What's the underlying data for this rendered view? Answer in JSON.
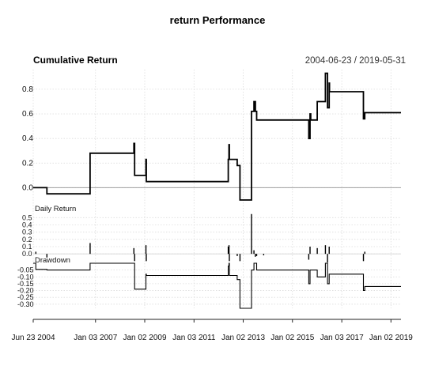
{
  "chart_data": {
    "type": "line",
    "title": "return Performance",
    "x_ticks": [
      "Jun 23 2004",
      "Jan 03 2007",
      "Jan 02 2009",
      "Jan 03 2011",
      "Jan 02 2013",
      "Jan 02 2015",
      "Jan 03 2017",
      "Jan 02 2019"
    ],
    "x_range": [
      "2004-06-23",
      "2019-05-31"
    ],
    "grid": true,
    "panels": [
      {
        "name": "cumulative",
        "title": "Cumulative Return",
        "period": "2004-06-23 / 2019-05-31",
        "yticks": [
          "0.8",
          "0.6",
          "0.4",
          "0.2",
          "0.0"
        ],
        "ylim": [
          -0.1,
          0.96
        ],
        "reference_line": 0,
        "series": [
          {
            "x": [
              "2004-06-23",
              "2005-01-12",
              "2005-01-12",
              "2006-10-15",
              "2006-10-15",
              "2008-07-25",
              "2008-07-25",
              "2008-08-05",
              "2008-08-05",
              "2009-01-20",
              "2009-01-20",
              "2009-01-25",
              "2009-01-25",
              "2012-05-25",
              "2012-05-25",
              "2012-06-05",
              "2012-06-05",
              "2012-06-10",
              "2012-06-10",
              "2012-10-05",
              "2012-10-05",
              "2012-11-15",
              "2012-11-15",
              "2013-05-05",
              "2013-05-05",
              "2013-06-10",
              "2013-06-10",
              "2013-07-01",
              "2013-07-01",
              "2013-07-20",
              "2013-07-20",
              "2015-09-01",
              "2015-09-01",
              "2015-09-20",
              "2015-09-20",
              "2015-10-01",
              "2015-10-01",
              "2016-01-05",
              "2016-01-05",
              "2016-05-05",
              "2016-05-05",
              "2016-06-05",
              "2016-06-05",
              "2016-06-30",
              "2016-06-30",
              "2016-07-05",
              "2016-07-05",
              "2017-11-20",
              "2017-11-20",
              "2017-12-10",
              "2017-12-10",
              "2019-05-31"
            ],
            "y": [
              0.0,
              0.0,
              -0.05,
              -0.05,
              0.28,
              0.28,
              0.36,
              0.36,
              0.1,
              0.1,
              0.23,
              0.23,
              0.05,
              0.05,
              0.23,
              0.23,
              0.35,
              0.35,
              0.23,
              0.23,
              0.18,
              0.18,
              -0.1,
              -0.1,
              0.62,
              0.62,
              0.7,
              0.7,
              0.62,
              0.62,
              0.55,
              0.55,
              0.4,
              0.4,
              0.6,
              0.6,
              0.55,
              0.55,
              0.7,
              0.7,
              0.93,
              0.93,
              0.65,
              0.65,
              0.85,
              0.85,
              0.78,
              0.78,
              0.56,
              0.56,
              0.61,
              0.61
            ]
          }
        ]
      },
      {
        "name": "daily",
        "title": "Daily Return",
        "yticks": [
          "0.5",
          "0.4",
          "0.3",
          "0.2",
          "0.1",
          "0.0"
        ],
        "ylim": [
          -0.02,
          0.58
        ],
        "bars": [
          {
            "x": "2004-08-01",
            "v": 0.03
          },
          {
            "x": "2005-01-12",
            "v": -0.05
          },
          {
            "x": "2006-10-15",
            "v": 0.15
          },
          {
            "x": "2008-07-25",
            "v": 0.08
          },
          {
            "x": "2008-08-05",
            "v": -0.1
          },
          {
            "x": "2009-01-20",
            "v": 0.12
          },
          {
            "x": "2009-01-25",
            "v": -0.1
          },
          {
            "x": "2012-05-25",
            "v": 0.1
          },
          {
            "x": "2012-06-05",
            "v": 0.12
          },
          {
            "x": "2012-06-10",
            "v": -0.1
          },
          {
            "x": "2012-10-05",
            "v": -0.03
          },
          {
            "x": "2012-11-15",
            "v": -0.1
          },
          {
            "x": "2013-05-05",
            "v": 0.55
          },
          {
            "x": "2013-06-10",
            "v": 0.05
          },
          {
            "x": "2013-07-01",
            "v": -0.04
          },
          {
            "x": "2013-07-20",
            "v": -0.03
          },
          {
            "x": "2013-11-01",
            "v": -0.02
          },
          {
            "x": "2015-09-01",
            "v": -0.08
          },
          {
            "x": "2015-09-20",
            "v": 0.1
          },
          {
            "x": "2016-01-05",
            "v": 0.08
          },
          {
            "x": "2016-05-05",
            "v": 0.12
          },
          {
            "x": "2016-06-05",
            "v": -0.12
          },
          {
            "x": "2016-06-30",
            "v": 0.1
          },
          {
            "x": "2017-11-20",
            "v": -0.1
          },
          {
            "x": "2017-12-10",
            "v": 0.03
          }
        ]
      },
      {
        "name": "drawdown",
        "title": "Drawdown",
        "yticks": [
          "-0.05",
          "-0.10",
          "-0.15",
          "-0.20",
          "-0.25",
          "-0.30"
        ],
        "ylim": [
          -0.33,
          0.0
        ],
        "series": [
          {
            "x": [
              "2004-06-23",
              "2004-08-01",
              "2004-08-01",
              "2005-01-12",
              "2005-01-12",
              "2006-10-15",
              "2006-10-15",
              "2008-07-25",
              "2008-07-25",
              "2008-08-05",
              "2008-08-05",
              "2009-01-20",
              "2009-01-20",
              "2009-01-25",
              "2009-01-25",
              "2012-05-25",
              "2012-05-25",
              "2012-06-05",
              "2012-06-05",
              "2012-06-10",
              "2012-06-10",
              "2012-10-05",
              "2012-10-05",
              "2012-11-15",
              "2012-11-15",
              "2013-05-05",
              "2013-05-05",
              "2013-06-10",
              "2013-06-10",
              "2013-07-20",
              "2013-07-20",
              "2015-09-01",
              "2015-09-01",
              "2015-09-20",
              "2015-09-20",
              "2016-01-05",
              "2016-01-05",
              "2016-05-05",
              "2016-05-05",
              "2016-06-05",
              "2016-06-05",
              "2016-06-30",
              "2016-06-30",
              "2017-11-20",
              "2017-11-20",
              "2017-12-10",
              "2017-12-10",
              "2019-05-31"
            ],
            "y": [
              0.0,
              0.0,
              -0.045,
              -0.045,
              -0.05,
              -0.05,
              0.0,
              0.0,
              0.0,
              0.0,
              -0.19,
              -0.19,
              -0.08,
              -0.08,
              -0.09,
              -0.09,
              -0.02,
              -0.02,
              0.0,
              0.0,
              -0.09,
              -0.09,
              -0.12,
              -0.12,
              -0.33,
              -0.33,
              -0.05,
              -0.05,
              0.0,
              0.0,
              -0.05,
              -0.05,
              -0.15,
              -0.15,
              -0.05,
              -0.05,
              -0.1,
              -0.1,
              0.0,
              0.0,
              -0.15,
              -0.15,
              -0.08,
              -0.08,
              -0.2,
              -0.2,
              -0.17,
              -0.17
            ]
          }
        ]
      }
    ]
  }
}
